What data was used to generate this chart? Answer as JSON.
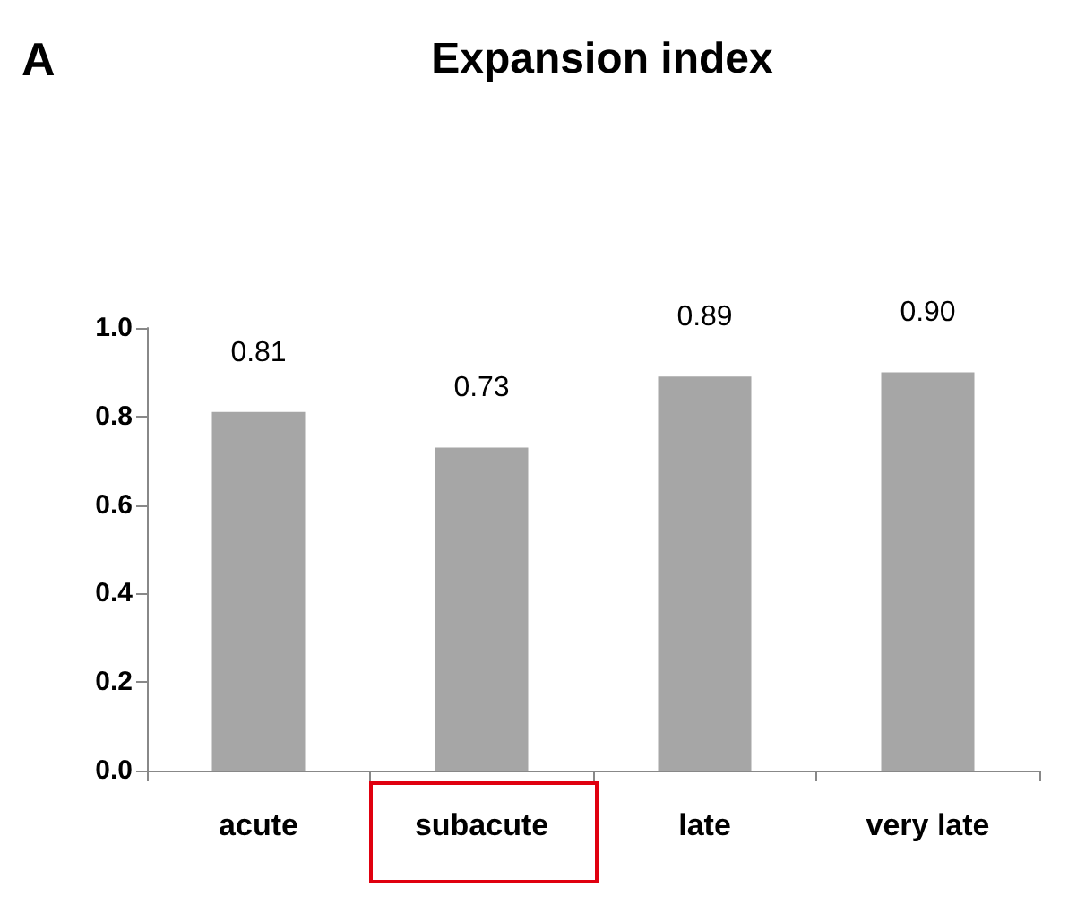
{
  "chart_data": {
    "type": "bar",
    "title": "Expansion index",
    "annotations": [
      "A"
    ],
    "categories": [
      "acute",
      "subacute",
      "late",
      "very late"
    ],
    "values": [
      0.81,
      0.73,
      0.89,
      0.9
    ],
    "value_labels": [
      "0.81",
      "0.73",
      "0.89",
      "0.90"
    ],
    "color": "#a6a6a6",
    "ylim": [
      0,
      1
    ],
    "yticks": [
      {
        "value": 0,
        "label": "0.0"
      },
      0.2,
      0.4,
      0.6,
      0.8,
      {
        "value": 1,
        "label": "1.0"
      }
    ],
    "grid": false
  }
}
